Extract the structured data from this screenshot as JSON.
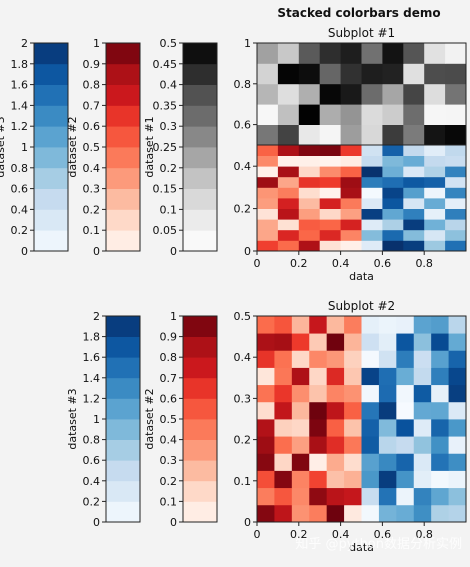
{
  "figure": {
    "title": "Stacked colorbars demo",
    "watermark": "知乎 @python数据分析实例"
  },
  "chart_data": [
    {
      "type": "heatmap",
      "title": "Subplot #1",
      "xlabel": "data",
      "x_range": [
        0,
        1
      ],
      "xticks": [
        "0",
        "0.2",
        "0.4",
        "0.6",
        "0.8"
      ],
      "layers": [
        {
          "name": "dataset #1",
          "cmap": "Greys",
          "rows": 5,
          "cols": 10,
          "y_range": [
            0.5,
            1.0
          ],
          "v_range": [
            0,
            0.5
          ],
          "yticks": [
            "0.6",
            "0.8",
            "1"
          ]
        },
        {
          "name": "dataset #2",
          "cmap": "Reds",
          "rows": 10,
          "cols": 5,
          "x_range": [
            0,
            0.5
          ],
          "y_range": [
            0,
            0.5
          ],
          "v_range": [
            0,
            1
          ]
        },
        {
          "name": "dataset #3",
          "cmap": "Blues",
          "rows": 10,
          "cols": 5,
          "x_range": [
            0.5,
            1.0
          ],
          "y_range": [
            0,
            0.5
          ],
          "v_range": [
            0,
            2
          ],
          "yticks": [
            "0",
            "0.2",
            "0.4"
          ]
        }
      ],
      "colorbars": [
        {
          "label": "dataset #3",
          "cmap": "Blues",
          "range": [
            0,
            2
          ],
          "ticks": [
            "0",
            "0.2",
            "0.4",
            "0.6",
            "0.8",
            "1",
            "1.2",
            "1.4",
            "1.6",
            "1.8",
            "2"
          ]
        },
        {
          "label": "dataset #2",
          "cmap": "Reds",
          "range": [
            0,
            1
          ],
          "ticks": [
            "0",
            "0.1",
            "0.2",
            "0.3",
            "0.4",
            "0.5",
            "0.6",
            "0.7",
            "0.8",
            "0.9",
            "1"
          ]
        },
        {
          "label": "dataset #1",
          "cmap": "Greys",
          "range": [
            0,
            0.5
          ],
          "ticks": [
            "0",
            "0.05",
            "0.1",
            "0.15",
            "0.2",
            "0.25",
            "0.3",
            "0.35",
            "0.4",
            "0.45",
            "0.5"
          ]
        }
      ]
    },
    {
      "type": "heatmap",
      "title": "Subplot #2",
      "xlabel": "data",
      "x_range": [
        0,
        1
      ],
      "y_range": [
        0,
        0.5
      ],
      "xticks": [
        "0",
        "0.2",
        "0.4",
        "0.6",
        "0.8"
      ],
      "yticks": [
        "0",
        "0.1",
        "0.2",
        "0.3",
        "0.4",
        "0.5"
      ],
      "layers": [
        {
          "name": "dataset #2",
          "cmap": "Reds",
          "rows": 12,
          "cols": 6,
          "x_range": [
            0,
            0.5
          ],
          "y_range": [
            0,
            0.5
          ],
          "v_range": [
            0,
            1
          ]
        },
        {
          "name": "dataset #3",
          "cmap": "Blues",
          "rows": 12,
          "cols": 6,
          "x_range": [
            0.5,
            1.0
          ],
          "y_range": [
            0,
            0.5
          ],
          "v_range": [
            0,
            2
          ]
        }
      ],
      "colorbars": [
        {
          "label": "dataset #3",
          "cmap": "Blues",
          "range": [
            0,
            2
          ],
          "ticks": [
            "0",
            "0.2",
            "0.4",
            "0.6",
            "0.8",
            "1",
            "1.2",
            "1.4",
            "1.6",
            "1.8",
            "2"
          ]
        },
        {
          "label": "dataset #2",
          "cmap": "Reds",
          "range": [
            0,
            1
          ],
          "ticks": [
            "0",
            "0.1",
            "0.2",
            "0.3",
            "0.4",
            "0.5",
            "0.6",
            "0.7",
            "0.8",
            "0.9",
            "1"
          ]
        }
      ]
    }
  ],
  "colormaps": {
    "Blues": [
      "#f7fbff",
      "#deebf7",
      "#c6dbef",
      "#9ecae1",
      "#6baed6",
      "#4292c6",
      "#2171b5",
      "#08519c",
      "#08306b"
    ],
    "Reds": [
      "#fff5f0",
      "#fee0d2",
      "#fcbba1",
      "#fc9272",
      "#fb6a4a",
      "#ef3b2c",
      "#cb181d",
      "#a50f15",
      "#67000d"
    ],
    "Greys": [
      "#ffffff",
      "#f0f0f0",
      "#d9d9d9",
      "#bdbdbd",
      "#969696",
      "#737373",
      "#525252",
      "#252525",
      "#000000"
    ]
  }
}
